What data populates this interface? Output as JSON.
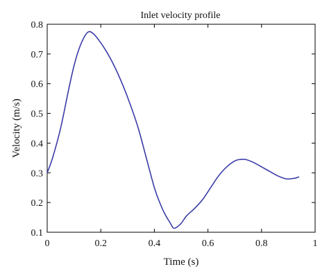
{
  "chart_data": {
    "type": "line",
    "title": "Inlet velocity profile",
    "xlabel": "Time (s)",
    "ylabel": "Velocity (m/s)",
    "xlim": [
      0,
      1
    ],
    "ylim": [
      0.1,
      0.8
    ],
    "xticks": [
      0,
      0.2,
      0.4,
      0.6,
      0.8,
      1
    ],
    "xtick_labels": [
      "0",
      "0.2",
      "0.4",
      "0.6",
      "0.8",
      "1"
    ],
    "yticks": [
      0.1,
      0.2,
      0.3,
      0.4,
      0.5,
      0.6,
      0.7,
      0.8
    ],
    "ytick_labels": [
      "0.1",
      "0.2",
      "0.3",
      "0.4",
      "0.5",
      "0.6",
      "0.7",
      "0.8"
    ],
    "grid": false,
    "colors": {
      "line": "#3a3aa8",
      "axis": "#000000"
    },
    "series": [
      {
        "x": [
          0.0,
          0.02,
          0.05,
          0.08,
          0.1,
          0.12,
          0.14,
          0.155,
          0.17,
          0.19,
          0.22,
          0.25,
          0.28,
          0.31,
          0.34,
          0.37,
          0.4,
          0.42,
          0.44,
          0.46,
          0.47,
          0.48,
          0.5,
          0.52,
          0.55,
          0.58,
          0.61,
          0.64,
          0.67,
          0.7,
          0.72,
          0.74,
          0.77,
          0.8,
          0.83,
          0.86,
          0.89,
          0.91,
          0.93,
          0.94
        ],
        "y": [
          0.3,
          0.35,
          0.45,
          0.58,
          0.66,
          0.72,
          0.76,
          0.775,
          0.77,
          0.75,
          0.71,
          0.66,
          0.6,
          0.53,
          0.45,
          0.35,
          0.25,
          0.2,
          0.16,
          0.13,
          0.115,
          0.115,
          0.13,
          0.155,
          0.18,
          0.21,
          0.25,
          0.29,
          0.32,
          0.34,
          0.345,
          0.345,
          0.335,
          0.32,
          0.305,
          0.29,
          0.28,
          0.28,
          0.283,
          0.287
        ]
      }
    ]
  }
}
